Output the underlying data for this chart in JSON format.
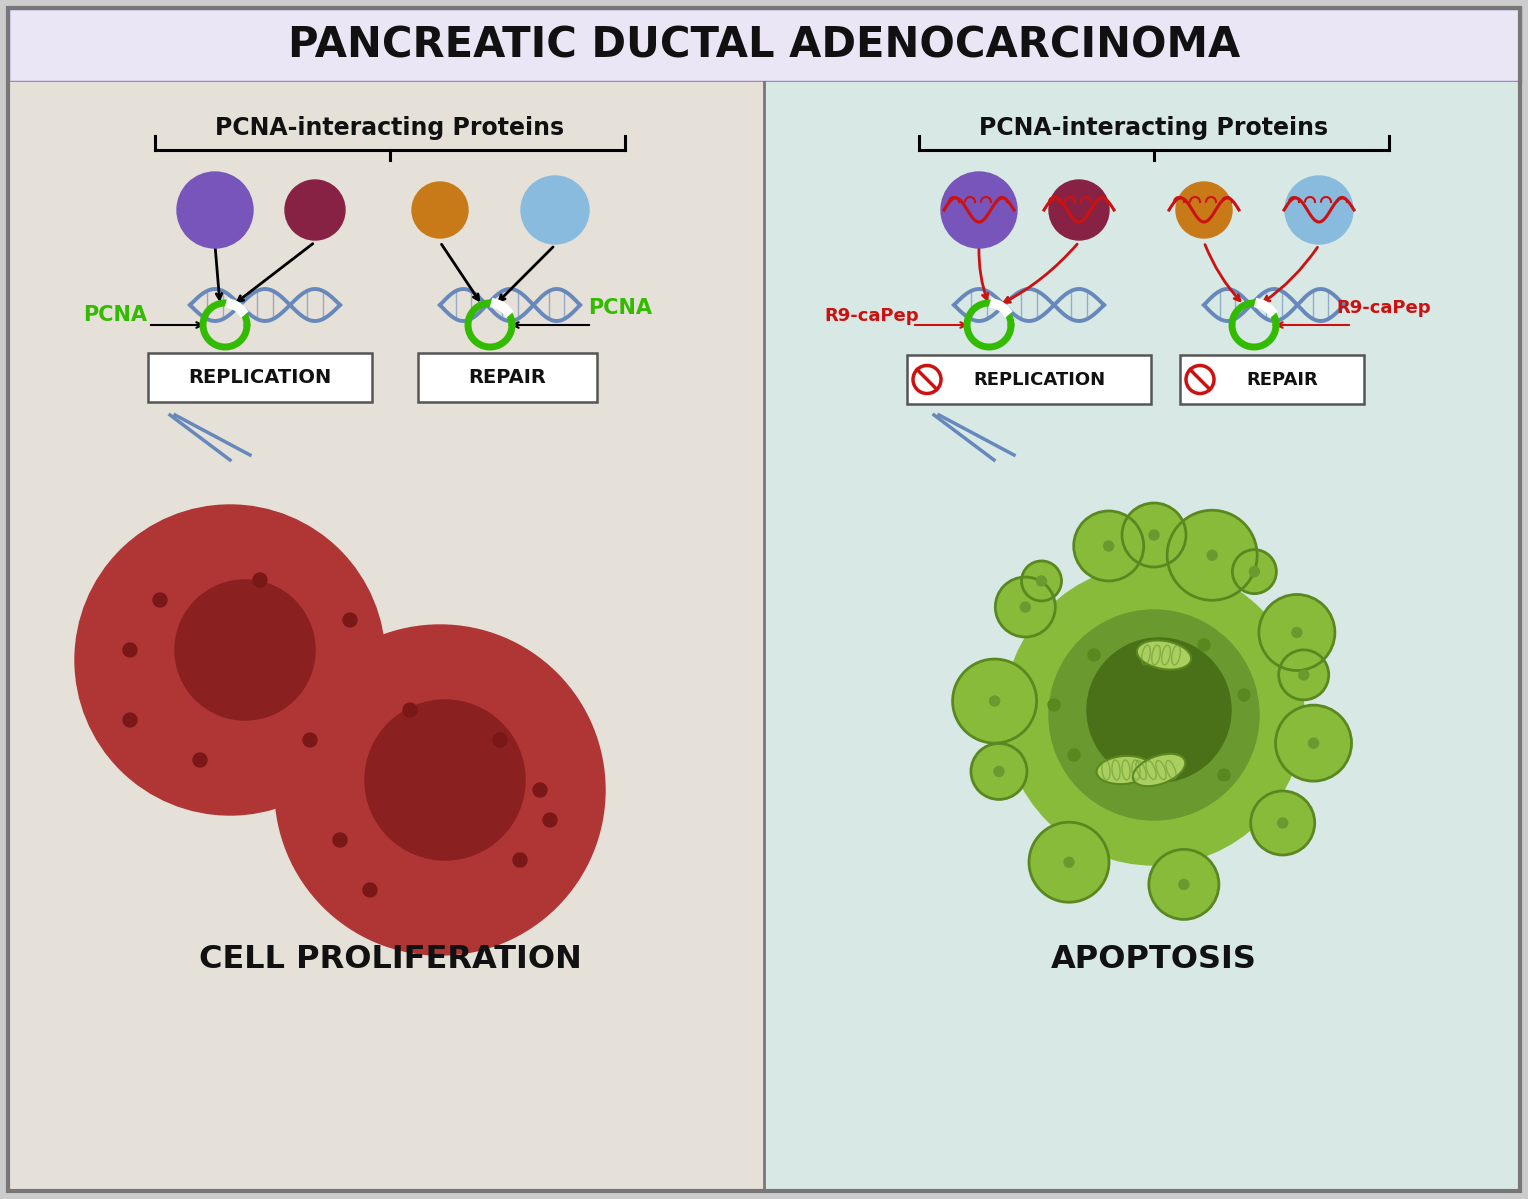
{
  "title": "PANCREATIC DUCTAL ADENOCARCINOMA",
  "title_bg": "#eae6f5",
  "title_border": "#9988cc",
  "left_bg": "#e5e0d8",
  "right_bg": "#d8e8e5",
  "left_label": "CELL PROLIFERATION",
  "right_label": "APOPTOSIS",
  "left_header": "PCNA-interacting Proteins",
  "right_header": "PCNA-interacting Proteins",
  "pcna_color": "#33bb00",
  "r9_color": "#cc1111",
  "protein_colors": [
    "#7755bb",
    "#882244",
    "#c87a18",
    "#88bbdd"
  ],
  "box_bg": "#ffffff",
  "dna_color": "#6688bb",
  "pcna_ring_color": "#33bb00",
  "cell_color": "#b03535",
  "cell_inner": "#8a2020",
  "cell_dots": "#7a1818",
  "apop_color": "#88bb3a",
  "apop_border": "#5a8820",
  "apop_cytoplasm": "#6a9930",
  "apop_nucleus": "#4a7018",
  "apop_mito": "#aacf60"
}
